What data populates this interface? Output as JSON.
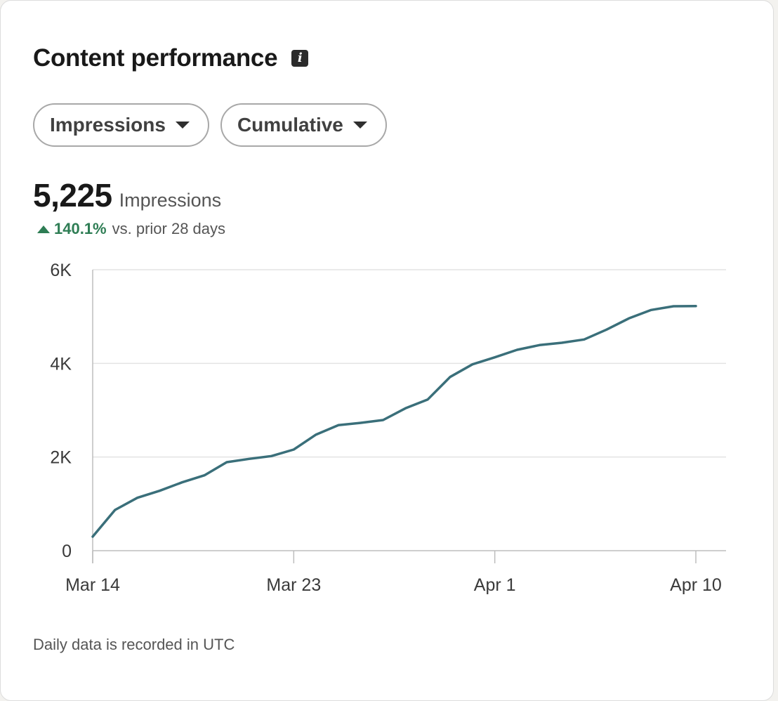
{
  "card": {
    "title": "Content performance",
    "info_icon": "info-icon",
    "filters": {
      "metric_label": "Impressions",
      "mode_label": "Cumulative"
    },
    "summary": {
      "value": "5,225",
      "unit": "Impressions",
      "change_value": "140.1%",
      "change_label": "vs. prior 28 days",
      "change_color": "#2e7d54"
    },
    "footer": "Daily data is recorded in UTC"
  },
  "chart_data": {
    "type": "line",
    "title": "",
    "xlabel": "",
    "ylabel": "",
    "ylim": [
      0,
      6000
    ],
    "yticks": [
      0,
      2000,
      4000,
      6000
    ],
    "ytick_labels": [
      "0",
      "2K",
      "4K",
      "6K"
    ],
    "xticks": [
      "2024-03-14",
      "2024-03-23",
      "2024-04-01",
      "2024-04-10"
    ],
    "xtick_labels": [
      "Mar 14",
      "Mar 23",
      "Apr 1",
      "Apr 10"
    ],
    "grid": true,
    "line_color": "#3a6f7a",
    "x": [
      "2024-03-14",
      "2024-03-15",
      "2024-03-16",
      "2024-03-17",
      "2024-03-18",
      "2024-03-19",
      "2024-03-20",
      "2024-03-21",
      "2024-03-22",
      "2024-03-23",
      "2024-03-24",
      "2024-03-25",
      "2024-03-26",
      "2024-03-27",
      "2024-03-28",
      "2024-03-29",
      "2024-03-30",
      "2024-03-31",
      "2024-04-01",
      "2024-04-02",
      "2024-04-03",
      "2024-04-04",
      "2024-04-05",
      "2024-04-06",
      "2024-04-07",
      "2024-04-08",
      "2024-04-09",
      "2024-04-10"
    ],
    "series": [
      {
        "values": [
          300,
          870,
          1130,
          1280,
          1460,
          1610,
          1890,
          1960,
          2020,
          2160,
          2480,
          2680,
          2730,
          2790,
          3040,
          3230,
          3710,
          3980,
          4130,
          4290,
          4390,
          4440,
          4510,
          4720,
          4960,
          5140,
          5220,
          5225
        ]
      }
    ]
  }
}
